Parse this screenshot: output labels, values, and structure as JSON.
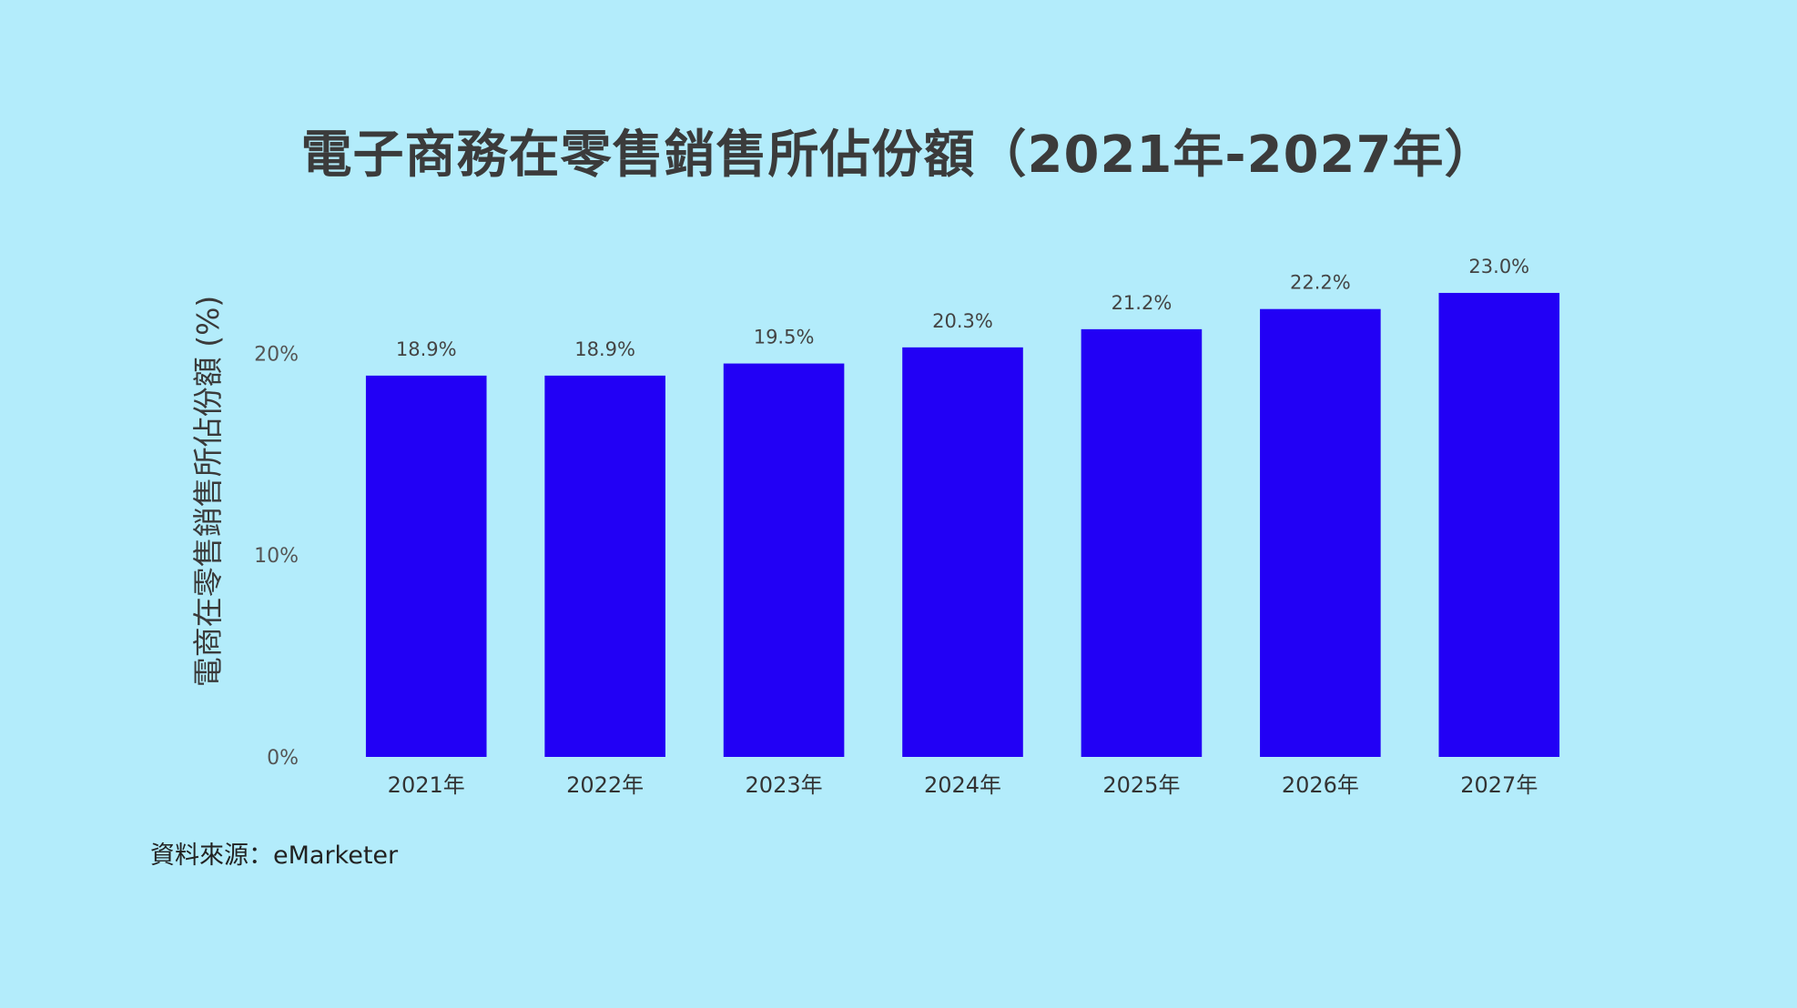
{
  "chart_data": {
    "type": "bar",
    "title": "電子商務在零售銷售所佔份額（2021年-2027年）",
    "ylabel": "電商在零售銷售所佔份額 (%)",
    "xlabel": "",
    "categories": [
      "2021年",
      "2022年",
      "2023年",
      "2024年",
      "2025年",
      "2026年",
      "2027年"
    ],
    "values": [
      18.9,
      18.9,
      19.5,
      20.3,
      21.2,
      22.2,
      23.0
    ],
    "data_labels": [
      "18.9%",
      "18.9%",
      "19.5%",
      "20.3%",
      "21.2%",
      "22.2%",
      "23.0%"
    ],
    "ylim": [
      0,
      23.9
    ],
    "yticks": [
      0,
      10,
      20
    ],
    "ytick_labels": [
      "0%",
      "10%",
      "20%"
    ],
    "grid": false,
    "legend": "none",
    "bar_color": "#2200f5"
  },
  "source": "資料來源：eMarketer",
  "colors": {
    "background": "#b3ecfb",
    "bar": "#2200f5",
    "title": "#3b3b3b"
  }
}
